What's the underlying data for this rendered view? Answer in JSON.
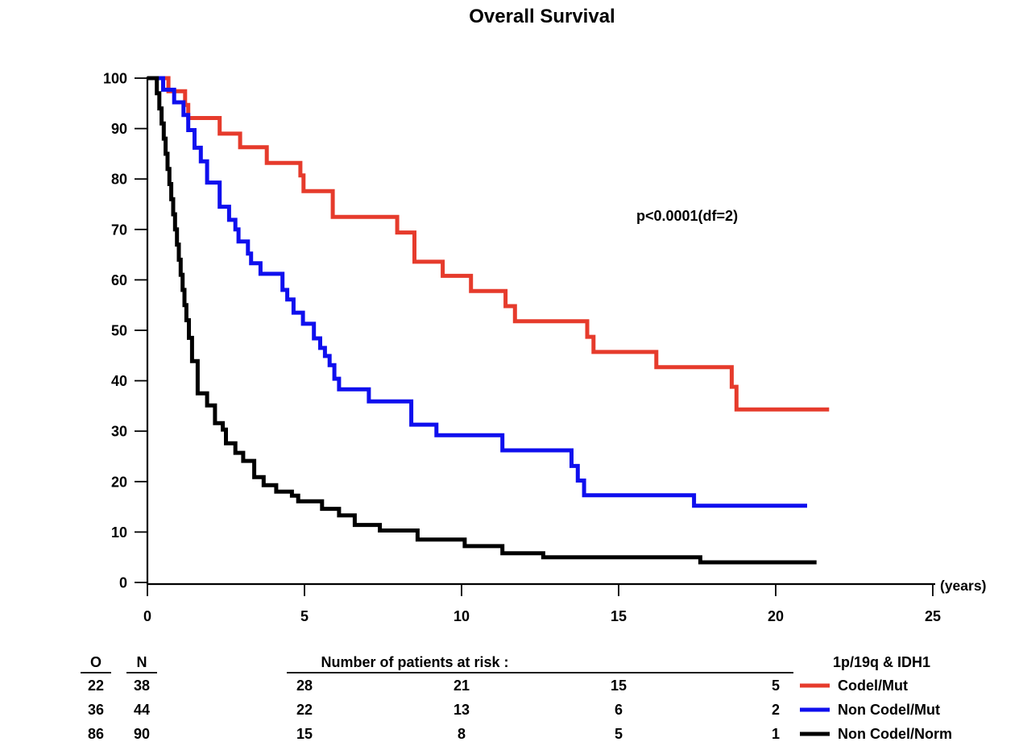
{
  "chart_data": {
    "type": "line",
    "subtype": "kaplan-meier-step",
    "title": "Overall Survival",
    "xlabel": "(years)",
    "ylabel": "",
    "annotation": "p<0.0001(df=2)",
    "xlim": [
      0,
      25
    ],
    "ylim": [
      0,
      100
    ],
    "x_ticks": [
      0,
      5,
      10,
      15,
      20,
      25
    ],
    "y_ticks": [
      0,
      10,
      20,
      30,
      40,
      50,
      60,
      70,
      80,
      90,
      100
    ],
    "grid": false,
    "legend_position": "bottom-right",
    "series": [
      {
        "name": "Codel/Mut",
        "color": "#e63b2c",
        "end_x": 21.7,
        "points": [
          [
            0,
            100
          ],
          [
            0.67,
            97.4
          ],
          [
            1.2,
            94.7
          ],
          [
            1.3,
            92.1
          ],
          [
            2.3,
            89.0
          ],
          [
            2.95,
            86.3
          ],
          [
            3.8,
            83.2
          ],
          [
            4.87,
            80.7
          ],
          [
            4.97,
            77.6
          ],
          [
            5.9,
            72.5
          ],
          [
            7.95,
            69.4
          ],
          [
            8.5,
            63.6
          ],
          [
            9.4,
            60.8
          ],
          [
            10.3,
            57.8
          ],
          [
            11.4,
            54.8
          ],
          [
            11.7,
            51.8
          ],
          [
            14.0,
            48.7
          ],
          [
            14.2,
            45.7
          ],
          [
            16.2,
            42.7
          ],
          [
            18.6,
            38.8
          ],
          [
            18.75,
            34.3
          ]
        ]
      },
      {
        "name": "Non Codel/Mut",
        "color": "#0f0fee",
        "end_x": 21.0,
        "points": [
          [
            0,
            100
          ],
          [
            0.5,
            97.7
          ],
          [
            0.85,
            95.2
          ],
          [
            1.15,
            92.7
          ],
          [
            1.3,
            89.7
          ],
          [
            1.5,
            86.2
          ],
          [
            1.7,
            83.5
          ],
          [
            1.9,
            79.3
          ],
          [
            2.3,
            74.5
          ],
          [
            2.6,
            71.9
          ],
          [
            2.8,
            70.0
          ],
          [
            2.9,
            67.6
          ],
          [
            3.2,
            65.2
          ],
          [
            3.3,
            63.3
          ],
          [
            3.6,
            61.2
          ],
          [
            4.3,
            58.0
          ],
          [
            4.45,
            56.1
          ],
          [
            4.65,
            53.5
          ],
          [
            4.95,
            51.3
          ],
          [
            5.3,
            48.4
          ],
          [
            5.5,
            46.5
          ],
          [
            5.65,
            44.9
          ],
          [
            5.8,
            43.1
          ],
          [
            5.95,
            40.4
          ],
          [
            6.1,
            38.3
          ],
          [
            7.05,
            35.9
          ],
          [
            8.4,
            31.3
          ],
          [
            9.2,
            29.2
          ],
          [
            11.3,
            26.2
          ],
          [
            13.5,
            23.1
          ],
          [
            13.7,
            20.2
          ],
          [
            13.9,
            17.3
          ],
          [
            17.4,
            15.2
          ]
        ]
      },
      {
        "name": "Non Codel/Norm",
        "color": "#000000",
        "end_x": 21.3,
        "points": [
          [
            0,
            100
          ],
          [
            0.3,
            97
          ],
          [
            0.38,
            94
          ],
          [
            0.45,
            91
          ],
          [
            0.52,
            88
          ],
          [
            0.58,
            85
          ],
          [
            0.64,
            82
          ],
          [
            0.7,
            79
          ],
          [
            0.76,
            76
          ],
          [
            0.82,
            73
          ],
          [
            0.88,
            70
          ],
          [
            0.94,
            67
          ],
          [
            1.0,
            64
          ],
          [
            1.06,
            61
          ],
          [
            1.12,
            58
          ],
          [
            1.18,
            55
          ],
          [
            1.24,
            52
          ],
          [
            1.32,
            48.5
          ],
          [
            1.42,
            43.9
          ],
          [
            1.6,
            37.5
          ],
          [
            1.9,
            35.1
          ],
          [
            2.15,
            31.6
          ],
          [
            2.4,
            30.3
          ],
          [
            2.5,
            27.6
          ],
          [
            2.8,
            25.7
          ],
          [
            3.05,
            24.1
          ],
          [
            3.4,
            20.9
          ],
          [
            3.7,
            19.3
          ],
          [
            4.1,
            18.0
          ],
          [
            4.6,
            17.2
          ],
          [
            4.8,
            16.1
          ],
          [
            5.56,
            14.6
          ],
          [
            6.1,
            13.3
          ],
          [
            6.6,
            11.4
          ],
          [
            7.4,
            10.3
          ],
          [
            8.6,
            8.5
          ],
          [
            10.1,
            7.2
          ],
          [
            11.3,
            5.8
          ],
          [
            12.6,
            5.0
          ],
          [
            17.6,
            4.0
          ]
        ]
      }
    ]
  },
  "footer": {
    "o_header": "O",
    "n_header": "N",
    "risk_header": "Number of patients at risk :",
    "legend_title": "1p/19q & IDH1",
    "risk_years": [
      5,
      10,
      15,
      20
    ],
    "rows": [
      {
        "o": "22",
        "n": "38",
        "at_risk": [
          "28",
          "21",
          "15",
          "5"
        ],
        "label": "Codel/Mut",
        "color": "#e63b2c"
      },
      {
        "o": "36",
        "n": "44",
        "at_risk": [
          "22",
          "13",
          "6",
          "2"
        ],
        "label": "Non Codel/Mut",
        "color": "#0f0fee"
      },
      {
        "o": "86",
        "n": "90",
        "at_risk": [
          "15",
          "8",
          "5",
          "1"
        ],
        "label": "Non Codel/Norm",
        "color": "#000000"
      }
    ]
  }
}
